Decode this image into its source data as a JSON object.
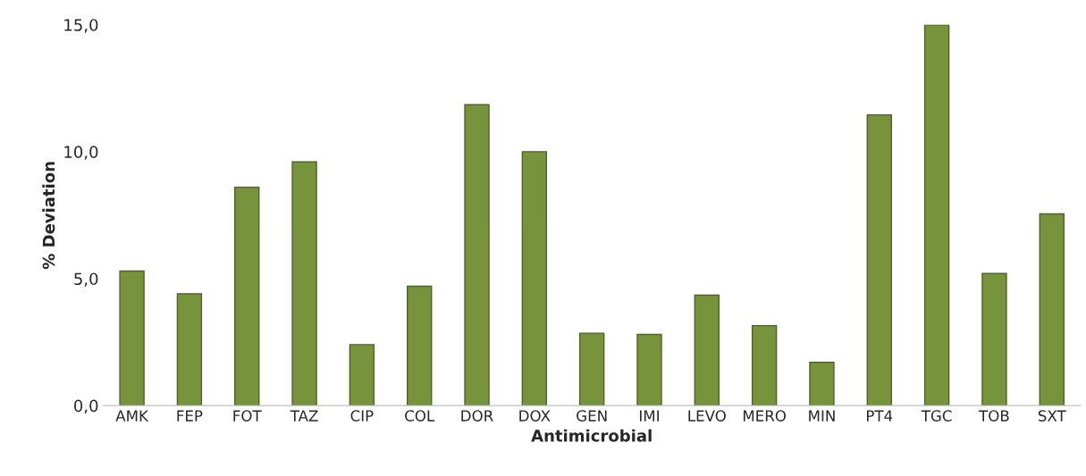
{
  "chart_data": {
    "type": "bar",
    "xlabel": "Antimicrobial",
    "ylabel": "% Deviation",
    "categories": [
      "AMK",
      "FEP",
      "FOT",
      "TAZ",
      "CIP",
      "COL",
      "DOR",
      "DOX",
      "GEN",
      "IMI",
      "LEVO",
      "MERO",
      "MIN",
      "PT4",
      "TGC",
      "TOB",
      "SXT"
    ],
    "values": [
      5.3,
      4.4,
      8.6,
      9.6,
      2.4,
      4.7,
      11.85,
      10.0,
      2.85,
      2.8,
      4.35,
      3.15,
      1.7,
      11.45,
      15.0,
      5.2,
      7.55
    ],
    "color": "#77933c",
    "ylim": [
      0,
      15
    ],
    "yticks": [
      {
        "value": 0,
        "label": "0,0"
      },
      {
        "value": 5,
        "label": "5,0"
      },
      {
        "value": 10,
        "label": "10,0"
      },
      {
        "value": 15,
        "label": "15,0"
      }
    ],
    "grid": false,
    "legend": false
  }
}
